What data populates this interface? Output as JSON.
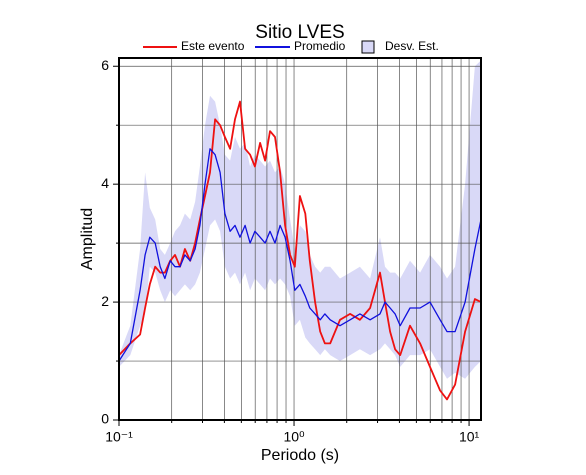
{
  "chart_data": {
    "type": "line",
    "title": "Sitio LVES",
    "xlabel": "Periodo (s)",
    "ylabel": "Amplitud",
    "xscale": "log",
    "xlim": [
      0.1,
      11.7
    ],
    "ylim": [
      0,
      6.14
    ],
    "xticks": [
      {
        "value": 0.1,
        "label": "10⁻¹"
      },
      {
        "value": 1,
        "label": "10⁰"
      },
      {
        "value": 10,
        "label": "10¹"
      }
    ],
    "xminor": [
      0.2,
      0.3,
      0.4,
      0.5,
      0.6,
      0.7,
      0.8,
      0.9,
      2,
      3,
      4,
      5,
      6,
      7,
      8,
      9
    ],
    "yticks": [
      0,
      2,
      4,
      6
    ],
    "yminor": [
      1,
      3,
      5
    ],
    "grid": true,
    "x": [
      0.1,
      0.116,
      0.132,
      0.141,
      0.15,
      0.161,
      0.172,
      0.183,
      0.196,
      0.209,
      0.223,
      0.238,
      0.255,
      0.272,
      0.29,
      0.31,
      0.331,
      0.354,
      0.378,
      0.403,
      0.431,
      0.46,
      0.491,
      0.525,
      0.561,
      0.598,
      0.64,
      0.683,
      0.729,
      0.778,
      0.832,
      0.889,
      0.949,
      1.01,
      1.08,
      1.16,
      1.23,
      1.32,
      1.41,
      1.5,
      1.61,
      1.83,
      2.09,
      2.38,
      2.72,
      3.1,
      3.31,
      3.54,
      3.78,
      4.04,
      4.6,
      5.25,
      5.98,
      6.83,
      7.48,
      8.32,
      9.49,
      10.8,
      11.7
    ],
    "band": {
      "name": "Desv. Est.",
      "color": "#d9d9f7",
      "upper": [
        1.1,
        1.6,
        2.9,
        4.2,
        3.6,
        3.4,
        2.9,
        2.8,
        3.0,
        3.2,
        3.3,
        3.5,
        3.4,
        3.7,
        4.3,
        5.0,
        5.5,
        5.4,
        5.0,
        4.5,
        4.4,
        4.8,
        4.6,
        4.7,
        4.3,
        4.5,
        4.4,
        4.3,
        4.4,
        4.2,
        4.3,
        4.0,
        3.4,
        2.9,
        3.3,
        3.2,
        2.8,
        2.6,
        2.5,
        2.6,
        2.6,
        2.4,
        2.5,
        2.6,
        2.4,
        3.1,
        2.6,
        2.5,
        2.5,
        2.4,
        2.7,
        2.5,
        2.8,
        2.6,
        2.4,
        2.6,
        4.0,
        6.0,
        6.1
      ],
      "lower": [
        0.9,
        1.1,
        1.6,
        1.8,
        2.6,
        2.5,
        2.2,
        2.0,
        2.2,
        2.1,
        2.2,
        2.3,
        2.2,
        2.3,
        2.5,
        2.9,
        3.3,
        3.4,
        3.2,
        2.6,
        2.4,
        2.5,
        2.3,
        2.5,
        2.2,
        2.4,
        2.3,
        2.2,
        2.4,
        2.3,
        2.4,
        2.3,
        2.1,
        1.6,
        1.7,
        1.4,
        1.3,
        1.2,
        1.1,
        1.2,
        1.1,
        1.0,
        1.1,
        1.2,
        1.1,
        1.2,
        1.3,
        1.2,
        1.1,
        0.9,
        1.1,
        1.1,
        1.2,
        0.9,
        0.7,
        0.8,
        0.7,
        0.9,
        1.0
      ]
    },
    "series": [
      {
        "name": "Este evento",
        "color": "#ee1111",
        "values": [
          1.1,
          1.3,
          1.45,
          1.9,
          2.3,
          2.6,
          2.5,
          2.5,
          2.7,
          2.8,
          2.6,
          2.9,
          2.7,
          3.0,
          3.4,
          3.8,
          4.2,
          5.1,
          5.0,
          4.8,
          4.6,
          5.1,
          5.4,
          4.6,
          4.5,
          4.3,
          4.7,
          4.4,
          4.9,
          4.8,
          4.2,
          3.3,
          2.8,
          2.6,
          3.8,
          3.5,
          2.7,
          2.0,
          1.5,
          1.3,
          1.3,
          1.7,
          1.8,
          1.7,
          1.9,
          2.5,
          2.0,
          1.5,
          1.2,
          1.1,
          1.6,
          1.3,
          0.9,
          0.5,
          0.35,
          0.6,
          1.5,
          2.05,
          2.0
        ]
      },
      {
        "name": "Promedio",
        "color": "#1111dd",
        "values": [
          1.0,
          1.3,
          2.2,
          2.8,
          3.1,
          3.0,
          2.6,
          2.4,
          2.7,
          2.6,
          2.6,
          2.8,
          2.7,
          2.9,
          3.3,
          4.0,
          4.6,
          4.5,
          4.2,
          3.5,
          3.2,
          3.3,
          3.1,
          3.3,
          3.0,
          3.2,
          3.1,
          3.0,
          3.2,
          3.0,
          3.3,
          3.1,
          2.7,
          2.2,
          2.3,
          2.1,
          1.9,
          1.8,
          1.7,
          1.8,
          1.7,
          1.6,
          1.7,
          1.8,
          1.7,
          1.8,
          2.0,
          1.9,
          1.8,
          1.6,
          1.9,
          1.9,
          2.0,
          1.7,
          1.5,
          1.5,
          2.0,
          2.9,
          3.4
        ]
      }
    ]
  }
}
